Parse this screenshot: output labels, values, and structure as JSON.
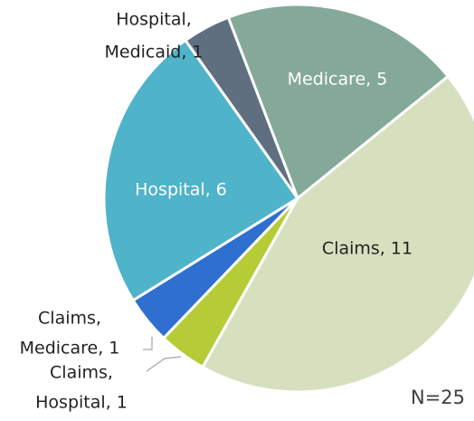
{
  "chart_data": {
    "type": "pie",
    "value_labels": [
      [
        "Medicare, 5"
      ],
      [
        "Claims, 11"
      ],
      [
        "Claims,",
        "Hospital, 1"
      ],
      [
        "Claims,",
        "Medicare, 1"
      ],
      [
        "Hospital, 6"
      ],
      [
        "Hospital,",
        "Medicaid, 1"
      ]
    ],
    "values": [
      5,
      11,
      1,
      1,
      6,
      1
    ],
    "colors": [
      "#84a998",
      "#d6e0bf",
      "#b5cc36",
      "#2e6fcf",
      "#4fb3c9",
      "#5f6f80"
    ],
    "annotation": "N=25"
  }
}
